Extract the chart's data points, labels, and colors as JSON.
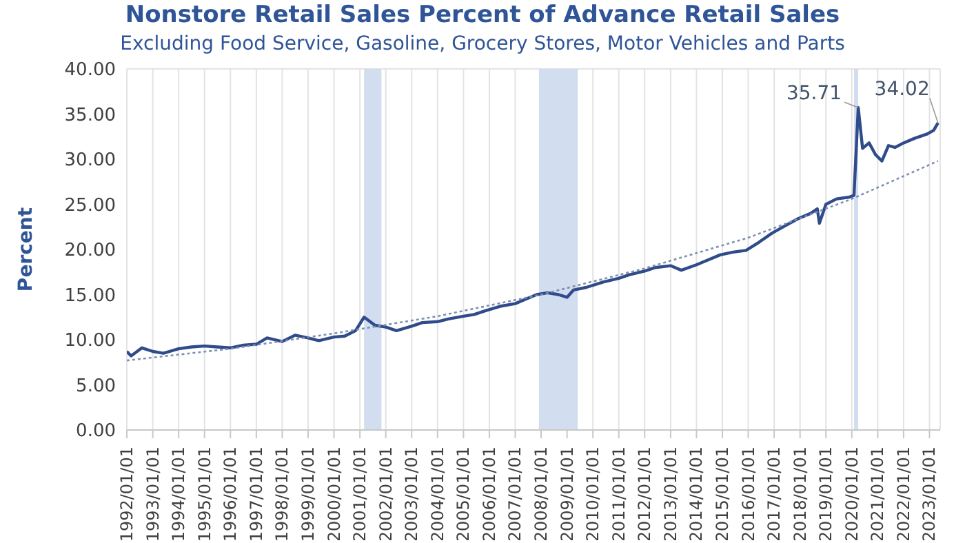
{
  "chart_data": {
    "type": "line",
    "title": "Nonstore Retail Sales Percent of Advance Retail Sales",
    "subtitle": "Excluding Food Service, Gasoline, Grocery Stores, Motor Vehicles and Parts",
    "ylabel": "Percent",
    "xlim": [
      "1992-01",
      "2023-06"
    ],
    "ylim": [
      0,
      40
    ],
    "yticks": [
      {
        "value": 0,
        "label": "0.00"
      },
      {
        "value": 5,
        "label": "5.00"
      },
      {
        "value": 10,
        "label": "10.00"
      },
      {
        "value": 15,
        "label": "15.00"
      },
      {
        "value": 20,
        "label": "20.00"
      },
      {
        "value": 25,
        "label": "25.00"
      },
      {
        "value": 30,
        "label": "30.00"
      },
      {
        "value": 35,
        "label": "35.00"
      },
      {
        "value": 40,
        "label": "40.00"
      }
    ],
    "xticks": [
      {
        "value": "1992-01",
        "label": "1992/01/01"
      },
      {
        "value": "1993-01",
        "label": "1993/01/01"
      },
      {
        "value": "1994-01",
        "label": "1994/01/01"
      },
      {
        "value": "1995-01",
        "label": "1995/01/01"
      },
      {
        "value": "1996-01",
        "label": "1996/01/01"
      },
      {
        "value": "1997-01",
        "label": "1997/01/01"
      },
      {
        "value": "1998-01",
        "label": "1998/01/01"
      },
      {
        "value": "1999-01",
        "label": "1999/01/01"
      },
      {
        "value": "2000-01",
        "label": "2000/01/01"
      },
      {
        "value": "2001-01",
        "label": "2001/01/01"
      },
      {
        "value": "2002-01",
        "label": "2002/01/01"
      },
      {
        "value": "2003-01",
        "label": "2003/01/01"
      },
      {
        "value": "2004-01",
        "label": "2004/01/01"
      },
      {
        "value": "2005-01",
        "label": "2005/01/01"
      },
      {
        "value": "2006-01",
        "label": "2006/01/01"
      },
      {
        "value": "2007-01",
        "label": "2007/01/01"
      },
      {
        "value": "2008-01",
        "label": "2008/01/01"
      },
      {
        "value": "2009-01",
        "label": "2009/01/01"
      },
      {
        "value": "2010-01",
        "label": "2010/01/01"
      },
      {
        "value": "2011-01",
        "label": "2011/01/01"
      },
      {
        "value": "2012-01",
        "label": "2012/01/01"
      },
      {
        "value": "2013-01",
        "label": "2013/01/01"
      },
      {
        "value": "2014-01",
        "label": "2014/01/01"
      },
      {
        "value": "2015-01",
        "label": "2015/01/01"
      },
      {
        "value": "2016-01",
        "label": "2016/01/01"
      },
      {
        "value": "2017-01",
        "label": "2017/01/01"
      },
      {
        "value": "2018-01",
        "label": "2018/01/01"
      },
      {
        "value": "2019-01",
        "label": "2019/01/01"
      },
      {
        "value": "2020-01",
        "label": "2020/01/01"
      },
      {
        "value": "2021-01",
        "label": "2021/01/01"
      },
      {
        "value": "2022-01",
        "label": "2022/01/01"
      },
      {
        "value": "2023-01",
        "label": "2023/01/01"
      }
    ],
    "grid": true,
    "legend": false,
    "bands": [
      {
        "axis": "x",
        "from": "2001-03",
        "to": "2001-11",
        "color": "#d3ddf0"
      },
      {
        "axis": "x",
        "from": "2007-12",
        "to": "2009-06",
        "color": "#d3ddf0"
      },
      {
        "axis": "x",
        "from": "2020-02",
        "to": "2020-04",
        "color": "#d3ddf0"
      }
    ],
    "annotations": [
      {
        "text": "35.71",
        "x": "2020-04",
        "y": 35.71
      },
      {
        "text": "34.02",
        "x": "2023-05",
        "y": 34.02
      }
    ],
    "series": [
      {
        "color": "#2f4b8a",
        "line_style": "solid",
        "x": [
          "1992-01",
          "1992-03",
          "1992-08",
          "1993-01",
          "1993-06",
          "1994-01",
          "1994-07",
          "1995-01",
          "1995-07",
          "1996-01",
          "1996-07",
          "1997-01",
          "1997-06",
          "1998-01",
          "1998-07",
          "1999-01",
          "1999-06",
          "2000-01",
          "2000-06",
          "2000-11",
          "2001-03",
          "2001-08",
          "2002-01",
          "2002-06",
          "2003-01",
          "2003-06",
          "2004-01",
          "2004-06",
          "2005-01",
          "2005-06",
          "2005-11",
          "2006-06",
          "2007-01",
          "2007-06",
          "2007-11",
          "2008-04",
          "2008-09",
          "2009-01",
          "2009-04",
          "2009-10",
          "2010-06",
          "2011-01",
          "2011-06",
          "2012-01",
          "2012-06",
          "2013-01",
          "2013-06",
          "2014-01",
          "2014-06",
          "2014-12",
          "2015-06",
          "2015-12",
          "2016-06",
          "2016-12",
          "2017-06",
          "2017-12",
          "2018-06",
          "2018-09",
          "2018-10",
          "2019-01",
          "2019-06",
          "2019-12",
          "2020-02",
          "2020-04",
          "2020-06",
          "2020-09",
          "2020-12",
          "2021-03",
          "2021-06",
          "2021-09",
          "2022-01",
          "2022-06",
          "2022-12",
          "2023-03",
          "2023-05"
        ],
        "values": [
          8.7,
          8.2,
          9.1,
          8.7,
          8.5,
          9.0,
          9.2,
          9.3,
          9.2,
          9.1,
          9.4,
          9.5,
          10.2,
          9.8,
          10.5,
          10.2,
          9.9,
          10.3,
          10.4,
          11.0,
          12.5,
          11.6,
          11.4,
          11.0,
          11.5,
          11.9,
          12.0,
          12.3,
          12.6,
          12.8,
          13.2,
          13.7,
          14.0,
          14.5,
          15.0,
          15.2,
          15.0,
          14.7,
          15.5,
          15.8,
          16.4,
          16.8,
          17.2,
          17.6,
          18.0,
          18.2,
          17.7,
          18.3,
          18.8,
          19.4,
          19.7,
          19.9,
          20.8,
          21.8,
          22.6,
          23.4,
          24.0,
          24.5,
          22.9,
          25.0,
          25.6,
          25.8,
          26.0,
          35.71,
          31.2,
          31.8,
          30.5,
          29.8,
          31.5,
          31.3,
          31.8,
          32.3,
          32.8,
          33.2,
          34.02
        ]
      },
      {
        "color": "#7d8fb3",
        "line_style": "dotted",
        "x": [
          "1992-01",
          "1996-01",
          "2000-01",
          "2004-01",
          "2008-01",
          "2012-01",
          "2016-01",
          "2020-01",
          "2023-05"
        ],
        "values": [
          7.7,
          9.0,
          10.7,
          12.6,
          15.0,
          17.9,
          21.3,
          25.6,
          29.8
        ]
      }
    ]
  }
}
